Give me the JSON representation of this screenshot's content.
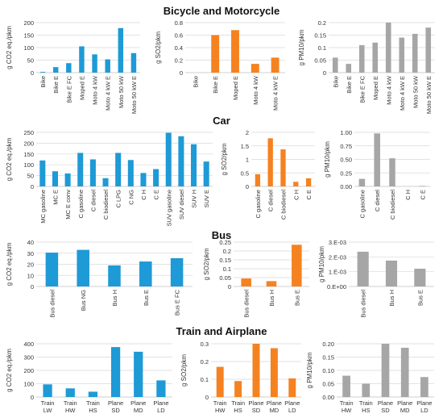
{
  "sections": [
    {
      "title": "Bicycle and Motorcycle"
    },
    {
      "title": "Car"
    },
    {
      "title": "Bus"
    },
    {
      "title": "Train and Airplane"
    }
  ],
  "colors": {
    "co2": "#1e9ad6",
    "so2": "#f58220",
    "pm10": "#a6a6a6",
    "grid": "#d9d9d9",
    "axis": "#bfbfbf"
  },
  "chart_data": [
    {
      "type": "bar",
      "categories": [
        "Bike",
        "Bike E",
        "Bike E FC",
        "Moped E",
        "Moto 4 kW",
        "Moto 4 kW E",
        "Moto 50 kW",
        "Moto 50 kW E"
      ],
      "values": [
        3,
        22,
        38,
        105,
        73,
        53,
        178,
        78
      ],
      "ylabel": "g CO2 eq./pkm",
      "ylim": [
        0,
        200
      ],
      "yticks": [
        "0",
        "50",
        "100",
        "150",
        "200"
      ],
      "color_key": "co2",
      "label_rot": true
    },
    {
      "type": "bar",
      "categories": [
        "Bike",
        "Bike E",
        "Moped E",
        "Moto 4 kW",
        "Moto 4 kW E"
      ],
      "values": [
        0,
        0.6,
        0.68,
        0.14,
        0.24
      ],
      "ylabel": "g SO2/pkm",
      "ylim": [
        0,
        0.8
      ],
      "yticks": [
        "0",
        "0.2",
        "0.4",
        "0.6",
        "0.8"
      ],
      "color_key": "so2",
      "label_rot": true
    },
    {
      "type": "bar",
      "categories": [
        "Bike",
        "Bike E",
        "Bike E FC",
        "Moped E",
        "Moto 4 kW",
        "Moto 4 kW E",
        "Moto 50 kW",
        "Moto 50 kW E"
      ],
      "values": [
        0.06,
        0.035,
        0.11,
        0.12,
        0.2,
        0.14,
        0.155,
        0.18
      ],
      "ylabel": "g PM10/pkm",
      "ylim": [
        0,
        0.2
      ],
      "yticks": [
        "0",
        "0.05",
        "0.1",
        "0.15",
        "0.2"
      ],
      "color_key": "pm10",
      "label_rot": true
    },
    {
      "type": "bar",
      "categories": [
        "MC gasoline",
        "MC E",
        "MC E conv",
        "C gasoline",
        "C diesel",
        "C biodiesel",
        "C LPG",
        "C NG",
        "C H",
        "C E",
        "SUV gasoline",
        "SUV diesel",
        "SUV H",
        "SUV E"
      ],
      "values": [
        120,
        70,
        60,
        155,
        125,
        38,
        155,
        122,
        62,
        80,
        248,
        232,
        195,
        115
      ],
      "ylabel": "g CO2 eq./pkm",
      "ylim": [
        0,
        250
      ],
      "yticks": [
        "0",
        "50",
        "100",
        "150",
        "200",
        "250"
      ],
      "color_key": "co2",
      "label_rot": true
    },
    {
      "type": "bar",
      "categories": [
        "C gasoline",
        "C diesel",
        "C biodiesel",
        "C H",
        "C E"
      ],
      "values": [
        0.45,
        1.78,
        1.37,
        0.17,
        0.3
      ],
      "ylabel": "g SO2/pkm",
      "ylim": [
        0,
        2
      ],
      "yticks": [
        "0",
        "0.5",
        "1",
        "1.5",
        "2"
      ],
      "color_key": "so2",
      "label_rot": true
    },
    {
      "type": "bar",
      "categories": [
        "C gasoline",
        "C diesel",
        "C biodiesel",
        "C H",
        "C E"
      ],
      "values": [
        0.14,
        0.98,
        0.52,
        0.0,
        0.01
      ],
      "ylabel": "g PM10/pkm",
      "ylim": [
        0,
        1
      ],
      "yticks": [
        "0.00",
        "0.25",
        "0.50",
        "0.75",
        "1.00"
      ],
      "color_key": "pm10",
      "label_rot": true
    },
    {
      "type": "bar",
      "categories": [
        "Bus diesel",
        "Bus NG",
        "Bus H",
        "Bus E",
        "Bus E FC"
      ],
      "values": [
        30.5,
        33,
        19,
        22.5,
        25.5
      ],
      "ylabel": "g CO2 eq./pkm",
      "ylim": [
        0,
        40
      ],
      "yticks": [
        "0",
        "10",
        "20",
        "30",
        "40"
      ],
      "color_key": "co2",
      "label_rot": true
    },
    {
      "type": "bar",
      "categories": [
        "Bus diesel",
        "Bus H",
        "Bus E"
      ],
      "values": [
        0.045,
        0.03,
        0.235
      ],
      "ylabel": "g SO2/pkm",
      "ylim": [
        0,
        0.25
      ],
      "yticks": [
        "0",
        "0.05",
        "0.1",
        "0.15",
        "0.2",
        "0.25"
      ],
      "color_key": "so2",
      "label_rot": true
    },
    {
      "type": "bar",
      "categories": [
        "Bus diesel",
        "Bus H",
        "Bus E"
      ],
      "values": [
        0.00235,
        0.00175,
        0.0012
      ],
      "ylabel": "g PM10/pkm",
      "ylim": [
        0,
        0.003
      ],
      "yticks": [
        "0.E+00",
        "1.E-03",
        "2.E-03",
        "3.E-03"
      ],
      "color_key": "pm10",
      "label_rot": true
    },
    {
      "type": "bar",
      "categories": [
        "Train LW",
        "Train HW",
        "Train HS",
        "Plane SD",
        "Plane MD",
        "Plane LD"
      ],
      "values": [
        95,
        65,
        40,
        375,
        340,
        125
      ],
      "ylabel": "g CO2 eq./pkm",
      "ylim": [
        0,
        400
      ],
      "yticks": [
        "0",
        "100",
        "200",
        "300",
        "400"
      ],
      "color_key": "co2",
      "label_rot": false
    },
    {
      "type": "bar",
      "categories": [
        "Train HW",
        "Train HS",
        "Plane SD",
        "Plane MD",
        "Plane LD"
      ],
      "values": [
        0.17,
        0.09,
        0.3,
        0.275,
        0.105
      ],
      "ylabel": "g SO2/pkm",
      "ylim": [
        0,
        0.3
      ],
      "yticks": [
        "0",
        "0.1",
        "0.2",
        "0.3"
      ],
      "color_key": "so2",
      "label_rot": false
    },
    {
      "type": "bar",
      "categories": [
        "Train HW",
        "Train HS",
        "Plane SD",
        "Plane MD",
        "Plane LD"
      ],
      "values": [
        0.08,
        0.05,
        0.2,
        0.185,
        0.075
      ],
      "ylabel": "g PM10/pkm",
      "ylim": [
        0,
        0.2
      ],
      "yticks": [
        "0.00",
        "0.05",
        "0.10",
        "0.15",
        "0.20"
      ],
      "color_key": "pm10",
      "label_rot": false
    }
  ]
}
